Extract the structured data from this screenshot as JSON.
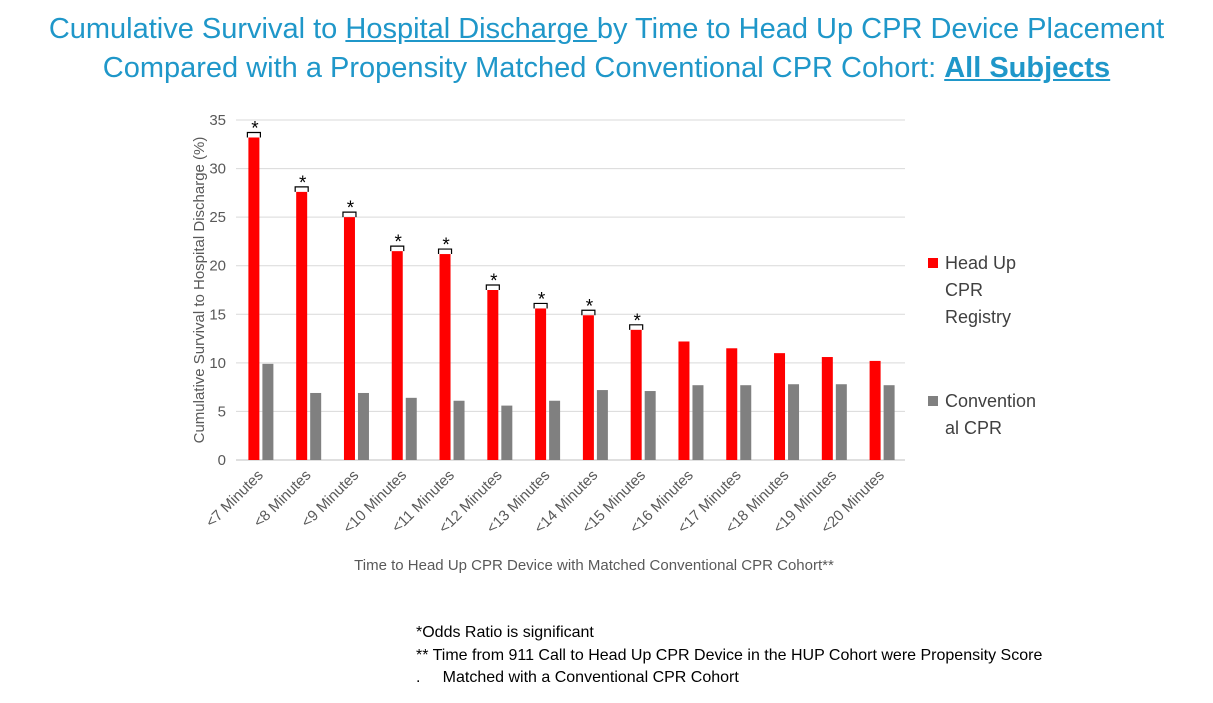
{
  "title": {
    "line1_prefix": "Cumulative Survival to ",
    "line1_emph": "Hospital Discharge ",
    "line1_suffix": "by Time to Head Up CPR Device Placement",
    "line2_prefix": "Compared with a Propensity Matched Conventional CPR Cohort: ",
    "line2_emph": "All Subjects"
  },
  "chart_data": {
    "type": "bar",
    "title": "",
    "xlabel": "Time to Head Up CPR Device with Matched Conventional CPR Cohort**",
    "ylabel": "Cumulative Survival to Hospital Discharge (%)",
    "ylim": [
      0,
      35
    ],
    "yticks": [
      0,
      5,
      10,
      15,
      20,
      25,
      30,
      35
    ],
    "grid": true,
    "legend_position": "right",
    "categories": [
      "<7 Minutes",
      "<8 Minutes",
      "<9 Minutes",
      "<10 Minutes",
      "<11 Minutes",
      "<12 Minutes",
      "<13 Minutes",
      "<14 Minutes",
      "<15 Minutes",
      "<16 Minutes",
      "<17 Minutes",
      "<18 Minutes",
      "<19 Minutes",
      "<20 Minutes"
    ],
    "series": [
      {
        "name": "Head Up CPR Registry",
        "color": "#ff0000",
        "values": [
          33.2,
          27.6,
          25.0,
          21.5,
          21.2,
          17.5,
          15.6,
          14.9,
          13.4,
          12.2,
          11.5,
          11.0,
          10.6,
          10.2
        ]
      },
      {
        "name": "Conventional CPR",
        "color": "#808080",
        "values": [
          9.9,
          6.9,
          6.9,
          6.4,
          6.1,
          5.6,
          6.1,
          7.2,
          7.1,
          7.7,
          7.7,
          7.8,
          7.8,
          7.7
        ]
      }
    ],
    "significant": [
      true,
      true,
      true,
      true,
      true,
      true,
      true,
      true,
      true,
      false,
      false,
      false,
      false,
      false
    ],
    "significance_marker": "*"
  },
  "legend": {
    "items": [
      {
        "lines": [
          "Head Up",
          "CPR",
          "Registry"
        ],
        "color": "#ff0000"
      },
      {
        "lines": [
          "Convention",
          "al CPR"
        ],
        "color": "#808080"
      }
    ]
  },
  "notes": [
    "*Odds Ratio is significant",
    "** Time from 911 Call to Head Up CPR Device in the HUP Cohort were Propensity Score",
    ".     Matched with a Conventional CPR Cohort"
  ]
}
